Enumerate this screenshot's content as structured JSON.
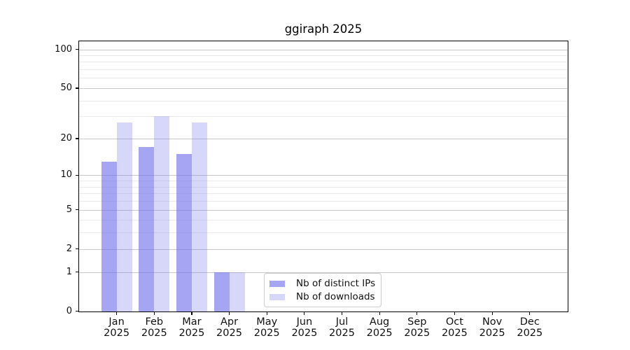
{
  "chart_data": {
    "type": "bar",
    "title": "ggiraph 2025",
    "x_axis": {
      "months": [
        "Jan",
        "Feb",
        "Mar",
        "Apr",
        "May",
        "Jun",
        "Jul",
        "Aug",
        "Sep",
        "Oct",
        "Nov",
        "Dec"
      ],
      "year": "2025"
    },
    "y_axis": {
      "scale": "log1p",
      "tick_labels": [
        "0",
        "1",
        "2",
        "5",
        "10",
        "20",
        "50",
        "100"
      ],
      "tick_values": [
        0,
        1,
        2,
        5,
        10,
        20,
        50,
        100
      ],
      "minor_tick_values": [
        3,
        4,
        6,
        7,
        8,
        9,
        30,
        40,
        60,
        70,
        80,
        90
      ],
      "ylim": [
        0,
        115
      ]
    },
    "series": [
      {
        "name": "Nb of distinct IPs",
        "values": [
          13,
          17,
          15,
          1,
          0,
          0,
          0,
          0,
          0,
          0,
          0,
          0
        ],
        "fill": "rgba(110,110,235,0.62)",
        "approx_hex": "#a9a9f2"
      },
      {
        "name": "Nb of downloads",
        "values": [
          27,
          30,
          27,
          1,
          0,
          0,
          0,
          0,
          0,
          0,
          0,
          0
        ],
        "fill": "rgba(110,110,235,0.28)",
        "approx_hex": "#dadaf9"
      }
    ],
    "legend": {
      "position": "lower center"
    },
    "grid": {
      "on": true,
      "major_color": "#c8c8c8",
      "minor_color": "#eaeaea"
    }
  }
}
